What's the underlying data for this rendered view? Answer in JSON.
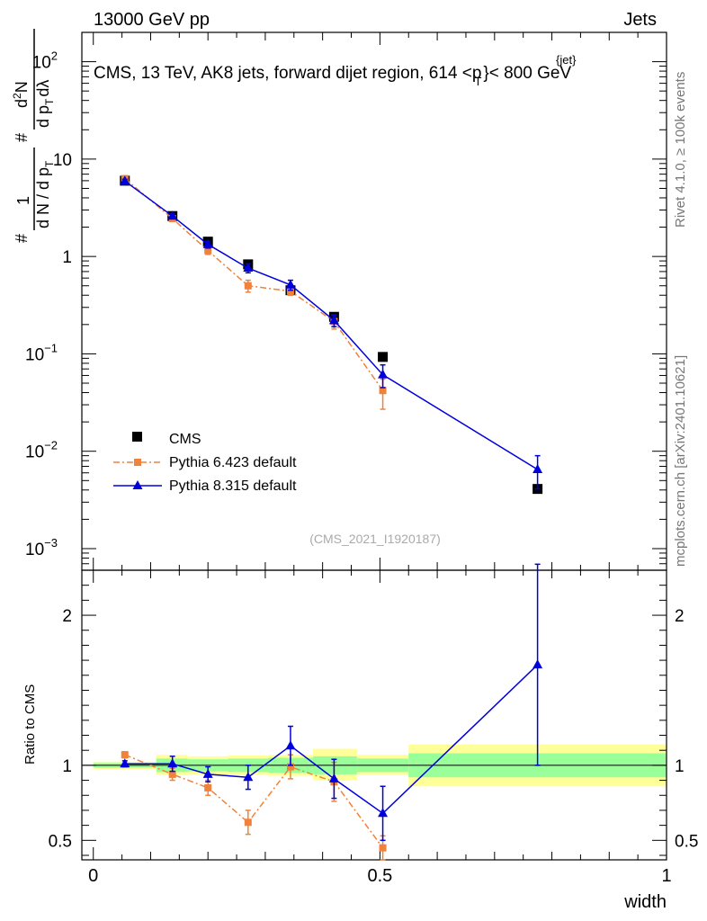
{
  "header": {
    "left": "13000 GeV pp",
    "right": "Jets",
    "title": "CMS, 13 TeV, AK8 jets, forward dijet region, 614 <p",
    "title_sup": "{jet}",
    "title_sub": "T",
    "title_tail": "}< 800 GeV"
  },
  "side_text": {
    "rivet": "Rivet 4.1.0, ≥ 100k events",
    "mcplots": "mcplots.cern.ch [arXiv:2401.10621]"
  },
  "colors": {
    "cms": "#000000",
    "pythia6": "#f0823c",
    "pythia8": "#0000dd",
    "band_inner": "#99ff99",
    "band_outer": "#ffff99"
  },
  "chart_data": [
    {
      "type": "scatter",
      "panel": "main",
      "yscale": "log",
      "ylim": [
        0.0006,
        200
      ],
      "xlim": [
        -0.02,
        1.0
      ],
      "ylabel_parts": [
        "#",
        "1",
        "d N / d p",
        "T",
        "#",
        "d",
        "2",
        "N",
        "d p",
        "T",
        "dλ"
      ],
      "y_ticks": [
        {
          "v": 0.001,
          "base": "10",
          "exp": "−3"
        },
        {
          "v": 0.01,
          "base": "10",
          "exp": "−2"
        },
        {
          "v": 0.1,
          "base": "10",
          "exp": "−1"
        },
        {
          "v": 1,
          "label": "1"
        },
        {
          "v": 10,
          "label": "10"
        },
        {
          "v": 100,
          "base": "10",
          "exp": "2"
        }
      ],
      "watermark": "(CMS_2021_I1920187)",
      "series": [
        {
          "name": "CMS",
          "style": "square-marker",
          "points": [
            {
              "x": 0.055,
              "y": 6.0,
              "xl": 0.0,
              "xh": 0.11
            },
            {
              "x": 0.138,
              "y": 2.6,
              "xl": 0.11,
              "xh": 0.165
            },
            {
              "x": 0.2,
              "y": 1.42,
              "xl": 0.165,
              "xh": 0.235
            },
            {
              "x": 0.27,
              "y": 0.83,
              "xl": 0.235,
              "xh": 0.305
            },
            {
              "x": 0.344,
              "y": 0.45,
              "xl": 0.305,
              "xh": 0.383
            },
            {
              "x": 0.42,
              "y": 0.24,
              "xl": 0.383,
              "xh": 0.46
            },
            {
              "x": 0.505,
              "y": 0.093,
              "xl": 0.46,
              "xh": 0.55
            },
            {
              "x": 0.775,
              "y": 0.0041,
              "xl": 0.55,
              "xh": 1.0
            }
          ]
        },
        {
          "name": "Pythia 6.423 default",
          "style": "dashdot-square",
          "points": [
            {
              "x": 0.055,
              "y": 6.3,
              "lo": 5.9,
              "hi": 6.7
            },
            {
              "x": 0.138,
              "y": 2.45,
              "lo": 2.3,
              "hi": 2.6
            },
            {
              "x": 0.2,
              "y": 1.15,
              "lo": 1.05,
              "hi": 1.25
            },
            {
              "x": 0.27,
              "y": 0.5,
              "lo": 0.43,
              "hi": 0.57
            },
            {
              "x": 0.344,
              "y": 0.44,
              "lo": 0.4,
              "hi": 0.48
            },
            {
              "x": 0.42,
              "y": 0.215,
              "lo": 0.18,
              "hi": 0.25
            },
            {
              "x": 0.505,
              "y": 0.042,
              "lo": 0.027,
              "hi": 0.055
            }
          ]
        },
        {
          "name": "Pythia 8.315 default",
          "style": "solid-triangle",
          "points": [
            {
              "x": 0.055,
              "y": 5.95,
              "lo": 5.7,
              "hi": 6.2
            },
            {
              "x": 0.138,
              "y": 2.6,
              "lo": 2.45,
              "hi": 2.75
            },
            {
              "x": 0.2,
              "y": 1.33,
              "lo": 1.22,
              "hi": 1.44
            },
            {
              "x": 0.27,
              "y": 0.76,
              "lo": 0.68,
              "hi": 0.84
            },
            {
              "x": 0.344,
              "y": 0.51,
              "lo": 0.45,
              "hi": 0.57
            },
            {
              "x": 0.42,
              "y": 0.22,
              "lo": 0.19,
              "hi": 0.25
            },
            {
              "x": 0.505,
              "y": 0.061,
              "lo": 0.045,
              "hi": 0.077
            },
            {
              "x": 0.775,
              "y": 0.0065,
              "lo": 0.0041,
              "hi": 0.009
            }
          ]
        }
      ]
    },
    {
      "type": "scatter",
      "panel": "ratio",
      "ylabel": "Ratio to CMS",
      "xlabel": "width",
      "ylim": [
        0.37,
        2.3
      ],
      "x_ticks": [
        {
          "v": 0,
          "label": "0"
        },
        {
          "v": 0.5,
          "label": "0.5"
        },
        {
          "v": 1,
          "label": "1"
        }
      ],
      "y_ticks": [
        {
          "v": 0.5,
          "label": "0.5"
        },
        {
          "v": 1,
          "label": "1"
        },
        {
          "v": 2,
          "label": "2"
        }
      ],
      "bands": [
        {
          "x0": 0.0,
          "x1": 0.11,
          "inner": [
            0.985,
            1.015
          ],
          "outer": [
            0.975,
            1.025
          ]
        },
        {
          "x0": 0.11,
          "x1": 0.165,
          "inner": [
            0.955,
            1.045
          ],
          "outer": [
            0.935,
            1.07
          ]
        },
        {
          "x0": 0.165,
          "x1": 0.235,
          "inner": [
            0.96,
            1.04
          ],
          "outer": [
            0.94,
            1.06
          ]
        },
        {
          "x0": 0.235,
          "x1": 0.305,
          "inner": [
            0.955,
            1.045
          ],
          "outer": [
            0.935,
            1.065
          ]
        },
        {
          "x0": 0.305,
          "x1": 0.383,
          "inner": [
            0.95,
            1.05
          ],
          "outer": [
            0.93,
            1.07
          ]
        },
        {
          "x0": 0.383,
          "x1": 0.46,
          "inner": [
            0.94,
            1.06
          ],
          "outer": [
            0.9,
            1.11
          ]
        },
        {
          "x0": 0.46,
          "x1": 0.55,
          "inner": [
            0.955,
            1.045
          ],
          "outer": [
            0.935,
            1.07
          ]
        },
        {
          "x0": 0.55,
          "x1": 1.0,
          "inner": [
            0.92,
            1.08
          ],
          "outer": [
            0.86,
            1.14
          ]
        }
      ],
      "series": [
        {
          "name": "Pythia 6.423 default",
          "style": "dashdot-square",
          "points": [
            {
              "x": 0.055,
              "y": 1.07,
              "lo": 1.05,
              "hi": 1.09
            },
            {
              "x": 0.138,
              "y": 0.94,
              "lo": 0.9,
              "hi": 0.98
            },
            {
              "x": 0.2,
              "y": 0.85,
              "lo": 0.8,
              "hi": 0.9
            },
            {
              "x": 0.27,
              "y": 0.62,
              "lo": 0.54,
              "hi": 0.7
            },
            {
              "x": 0.344,
              "y": 0.99,
              "lo": 0.91,
              "hi": 1.07
            },
            {
              "x": 0.42,
              "y": 0.89,
              "lo": 0.76,
              "hi": 1.02
            },
            {
              "x": 0.505,
              "y": 0.45,
              "lo": 0.37,
              "hi": 0.53
            }
          ]
        },
        {
          "name": "Pythia 8.315 default",
          "style": "solid-triangle",
          "points": [
            {
              "x": 0.055,
              "y": 1.01,
              "lo": 0.99,
              "hi": 1.03
            },
            {
              "x": 0.138,
              "y": 1.01,
              "lo": 0.96,
              "hi": 1.06
            },
            {
              "x": 0.2,
              "y": 0.94,
              "lo": 0.89,
              "hi": 0.99
            },
            {
              "x": 0.27,
              "y": 0.92,
              "lo": 0.84,
              "hi": 1.0
            },
            {
              "x": 0.344,
              "y": 1.13,
              "lo": 1.0,
              "hi": 1.26
            },
            {
              "x": 0.42,
              "y": 0.91,
              "lo": 0.78,
              "hi": 1.04
            },
            {
              "x": 0.505,
              "y": 0.68,
              "lo": 0.5,
              "hi": 0.86
            },
            {
              "x": 0.775,
              "y": 1.67,
              "lo": 1.0,
              "hi": 2.34
            }
          ]
        }
      ]
    }
  ]
}
